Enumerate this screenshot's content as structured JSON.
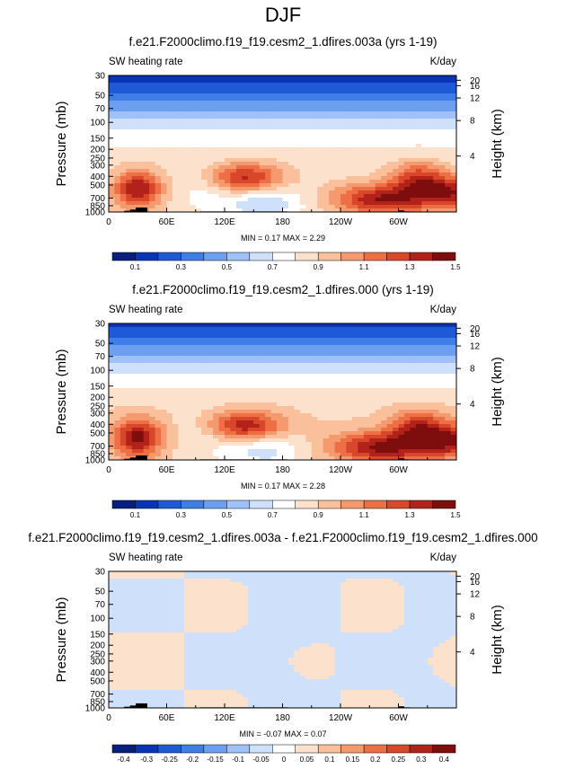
{
  "page_title": "DJF",
  "colors": {
    "abs_scale": [
      "#081f7f",
      "#0a34b8",
      "#1f5ad6",
      "#3f7ee6",
      "#6d9ff0",
      "#a0c1f7",
      "#cfe0fb",
      "#ffffff",
      "#fce2cc",
      "#f9c09b",
      "#f59a6f",
      "#ee6f45",
      "#d9472b",
      "#b2221a",
      "#7e0d0d"
    ],
    "diff_scale": [
      "#081f7f",
      "#0a34b8",
      "#1f5ad6",
      "#3f7ee6",
      "#6d9ff0",
      "#a0c1f7",
      "#cfe0fb",
      "#ffffff",
      "#fce2cc",
      "#f9c09b",
      "#f59a6f",
      "#ee6f45",
      "#d9472b",
      "#b2221a",
      "#7e0d0d"
    ],
    "terrain": "#000000"
  },
  "chart_data": [
    {
      "type": "heatmap",
      "title": "f.e21.F2000climo.f19_f19.cesm2_1.dfires.003a (yrs 1-19)",
      "left_label": "SW heating rate",
      "right_label": "K/day",
      "ylabel": "Pressure (mb)",
      "ylabel_right": "Height (km)",
      "x_ticks": [
        "0",
        "60E",
        "120E",
        "180",
        "120W",
        "60W"
      ],
      "y_ticks": [
        "30",
        "50",
        "70",
        "100",
        "150",
        "200",
        "250",
        "300",
        "400",
        "500",
        "700",
        "850",
        "1000"
      ],
      "y_ticks_right": [
        "20",
        "16",
        "12",
        "8",
        "4"
      ],
      "stats_label": "MIN =  0.17  MAX =  2.29",
      "colorbar_labels": [
        "0.1",
        "0.3",
        "0.5",
        "0.7",
        "0.9",
        "1.1",
        "1.3",
        "1.5"
      ]
    },
    {
      "type": "heatmap",
      "title": "f.e21.F2000climo.f19_f19.cesm2_1.dfires.000 (yrs 1-19)",
      "left_label": "SW heating rate",
      "right_label": "K/day",
      "ylabel": "Pressure (mb)",
      "ylabel_right": "Height (km)",
      "x_ticks": [
        "0",
        "60E",
        "120E",
        "180",
        "120W",
        "60W"
      ],
      "y_ticks": [
        "30",
        "50",
        "70",
        "100",
        "150",
        "200",
        "250",
        "300",
        "400",
        "500",
        "700",
        "850",
        "1000"
      ],
      "y_ticks_right": [
        "20",
        "16",
        "12",
        "8",
        "4"
      ],
      "stats_label": "MIN =  0.17  MAX =  2.28",
      "colorbar_labels": [
        "0.1",
        "0.3",
        "0.5",
        "0.7",
        "0.9",
        "1.1",
        "1.3",
        "1.5"
      ]
    },
    {
      "type": "heatmap",
      "title": "f.e21.F2000climo.f19_f19.cesm2_1.dfires.003a - f.e21.F2000climo.f19_f19.cesm2_1.dfires.000",
      "left_label": "SW heating rate",
      "right_label": "K/day",
      "ylabel": "Pressure (mb)",
      "ylabel_right": "Height (km)",
      "x_ticks": [
        "0",
        "60E",
        "120E",
        "180",
        "120W",
        "60W"
      ],
      "y_ticks": [
        "30",
        "50",
        "70",
        "100",
        "150",
        "200",
        "250",
        "300",
        "400",
        "500",
        "700",
        "850",
        "1000"
      ],
      "y_ticks_right": [
        "20",
        "16",
        "12",
        "8",
        "4"
      ],
      "stats_label": "MIN = -0.07  MAX =  0.07",
      "colorbar_labels": [
        "-0.4",
        "-0.3",
        "-0.25",
        "-0.2",
        "-0.15",
        "-0.1",
        "-0.05",
        "0",
        "0.05",
        "0.1",
        "0.15",
        "0.2",
        "0.25",
        "0.3",
        "0.4"
      ]
    }
  ]
}
